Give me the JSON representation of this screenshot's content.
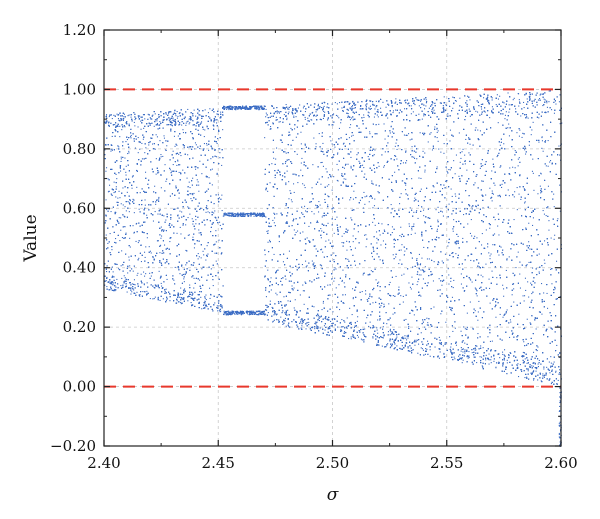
{
  "chart_data": {
    "type": "scatter",
    "title": "",
    "xlabel": "σ",
    "ylabel": "Value",
    "xlim": [
      2.4,
      2.6
    ],
    "ylim": [
      -0.2,
      1.2
    ],
    "x_ticks": [
      "2.40",
      "2.45",
      "2.50",
      "2.55",
      "2.60"
    ],
    "y_ticks": [
      "−0.20",
      "0.00",
      "0.20",
      "0.40",
      "0.60",
      "0.80",
      "1.00",
      "1.20"
    ],
    "highlighted_y_ticks": [
      "0.00",
      "1.00"
    ],
    "grid": true,
    "marker_color": "#3b6cc4",
    "reference_lines": [
      {
        "y": 1.0,
        "style": "dashed",
        "color": "#e8382c"
      },
      {
        "y": 0.0,
        "style": "dashed",
        "color": "#e8382c"
      }
    ],
    "series": [
      {
        "kind": "bifurcation-envelope",
        "upper_bound": [
          [
            2.4,
            0.92
          ],
          [
            2.45,
            0.94
          ],
          [
            2.5,
            0.96
          ],
          [
            2.55,
            0.98
          ],
          [
            2.6,
            1.0
          ]
        ],
        "lower_bound": [
          [
            2.4,
            0.33
          ],
          [
            2.45,
            0.25
          ],
          [
            2.5,
            0.17
          ],
          [
            2.55,
            0.09
          ],
          [
            2.6,
            0.0
          ]
        ],
        "periodic_window": {
          "x_start": 2.452,
          "x_end": 2.47,
          "values": [
            0.94,
            0.58,
            0.25
          ]
        }
      }
    ]
  }
}
